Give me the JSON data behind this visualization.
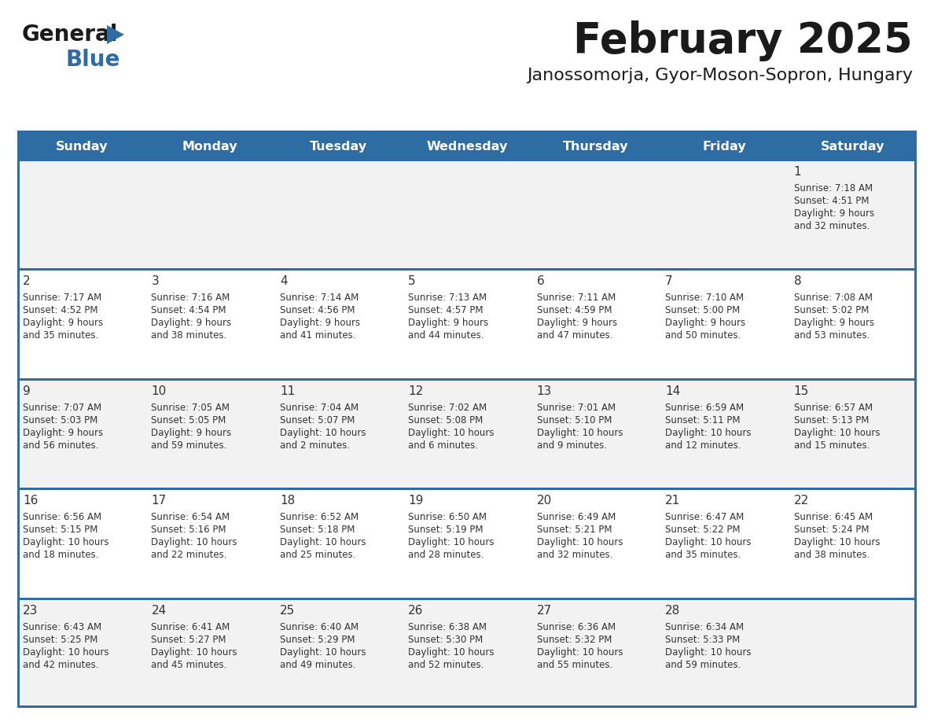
{
  "title": "February 2025",
  "subtitle": "Janossomorja, Gyor-Moson-Sopron, Hungary",
  "header_bg": "#2E6DA4",
  "header_text": "#FFFFFF",
  "cell_bg_even": "#F2F2F2",
  "cell_bg_odd": "#FFFFFF",
  "text_color": "#333333",
  "border_color": "#2E6DA4",
  "days_of_week": [
    "Sunday",
    "Monday",
    "Tuesday",
    "Wednesday",
    "Thursday",
    "Friday",
    "Saturday"
  ],
  "calendar_data": [
    [
      null,
      null,
      null,
      null,
      null,
      null,
      {
        "day": "1",
        "sunrise": "7:18 AM",
        "sunset": "4:51 PM",
        "daylight1": "Daylight: 9 hours",
        "daylight2": "and 32 minutes."
      }
    ],
    [
      {
        "day": "2",
        "sunrise": "7:17 AM",
        "sunset": "4:52 PM",
        "daylight1": "Daylight: 9 hours",
        "daylight2": "and 35 minutes."
      },
      {
        "day": "3",
        "sunrise": "7:16 AM",
        "sunset": "4:54 PM",
        "daylight1": "Daylight: 9 hours",
        "daylight2": "and 38 minutes."
      },
      {
        "day": "4",
        "sunrise": "7:14 AM",
        "sunset": "4:56 PM",
        "daylight1": "Daylight: 9 hours",
        "daylight2": "and 41 minutes."
      },
      {
        "day": "5",
        "sunrise": "7:13 AM",
        "sunset": "4:57 PM",
        "daylight1": "Daylight: 9 hours",
        "daylight2": "and 44 minutes."
      },
      {
        "day": "6",
        "sunrise": "7:11 AM",
        "sunset": "4:59 PM",
        "daylight1": "Daylight: 9 hours",
        "daylight2": "and 47 minutes."
      },
      {
        "day": "7",
        "sunrise": "7:10 AM",
        "sunset": "5:00 PM",
        "daylight1": "Daylight: 9 hours",
        "daylight2": "and 50 minutes."
      },
      {
        "day": "8",
        "sunrise": "7:08 AM",
        "sunset": "5:02 PM",
        "daylight1": "Daylight: 9 hours",
        "daylight2": "and 53 minutes."
      }
    ],
    [
      {
        "day": "9",
        "sunrise": "7:07 AM",
        "sunset": "5:03 PM",
        "daylight1": "Daylight: 9 hours",
        "daylight2": "and 56 minutes."
      },
      {
        "day": "10",
        "sunrise": "7:05 AM",
        "sunset": "5:05 PM",
        "daylight1": "Daylight: 9 hours",
        "daylight2": "and 59 minutes."
      },
      {
        "day": "11",
        "sunrise": "7:04 AM",
        "sunset": "5:07 PM",
        "daylight1": "Daylight: 10 hours",
        "daylight2": "and 2 minutes."
      },
      {
        "day": "12",
        "sunrise": "7:02 AM",
        "sunset": "5:08 PM",
        "daylight1": "Daylight: 10 hours",
        "daylight2": "and 6 minutes."
      },
      {
        "day": "13",
        "sunrise": "7:01 AM",
        "sunset": "5:10 PM",
        "daylight1": "Daylight: 10 hours",
        "daylight2": "and 9 minutes."
      },
      {
        "day": "14",
        "sunrise": "6:59 AM",
        "sunset": "5:11 PM",
        "daylight1": "Daylight: 10 hours",
        "daylight2": "and 12 minutes."
      },
      {
        "day": "15",
        "sunrise": "6:57 AM",
        "sunset": "5:13 PM",
        "daylight1": "Daylight: 10 hours",
        "daylight2": "and 15 minutes."
      }
    ],
    [
      {
        "day": "16",
        "sunrise": "6:56 AM",
        "sunset": "5:15 PM",
        "daylight1": "Daylight: 10 hours",
        "daylight2": "and 18 minutes."
      },
      {
        "day": "17",
        "sunrise": "6:54 AM",
        "sunset": "5:16 PM",
        "daylight1": "Daylight: 10 hours",
        "daylight2": "and 22 minutes."
      },
      {
        "day": "18",
        "sunrise": "6:52 AM",
        "sunset": "5:18 PM",
        "daylight1": "Daylight: 10 hours",
        "daylight2": "and 25 minutes."
      },
      {
        "day": "19",
        "sunrise": "6:50 AM",
        "sunset": "5:19 PM",
        "daylight1": "Daylight: 10 hours",
        "daylight2": "and 28 minutes."
      },
      {
        "day": "20",
        "sunrise": "6:49 AM",
        "sunset": "5:21 PM",
        "daylight1": "Daylight: 10 hours",
        "daylight2": "and 32 minutes."
      },
      {
        "day": "21",
        "sunrise": "6:47 AM",
        "sunset": "5:22 PM",
        "daylight1": "Daylight: 10 hours",
        "daylight2": "and 35 minutes."
      },
      {
        "day": "22",
        "sunrise": "6:45 AM",
        "sunset": "5:24 PM",
        "daylight1": "Daylight: 10 hours",
        "daylight2": "and 38 minutes."
      }
    ],
    [
      {
        "day": "23",
        "sunrise": "6:43 AM",
        "sunset": "5:25 PM",
        "daylight1": "Daylight: 10 hours",
        "daylight2": "and 42 minutes."
      },
      {
        "day": "24",
        "sunrise": "6:41 AM",
        "sunset": "5:27 PM",
        "daylight1": "Daylight: 10 hours",
        "daylight2": "and 45 minutes."
      },
      {
        "day": "25",
        "sunrise": "6:40 AM",
        "sunset": "5:29 PM",
        "daylight1": "Daylight: 10 hours",
        "daylight2": "and 49 minutes."
      },
      {
        "day": "26",
        "sunrise": "6:38 AM",
        "sunset": "5:30 PM",
        "daylight1": "Daylight: 10 hours",
        "daylight2": "and 52 minutes."
      },
      {
        "day": "27",
        "sunrise": "6:36 AM",
        "sunset": "5:32 PM",
        "daylight1": "Daylight: 10 hours",
        "daylight2": "and 55 minutes."
      },
      {
        "day": "28",
        "sunrise": "6:34 AM",
        "sunset": "5:33 PM",
        "daylight1": "Daylight: 10 hours",
        "daylight2": "and 59 minutes."
      },
      null
    ]
  ]
}
